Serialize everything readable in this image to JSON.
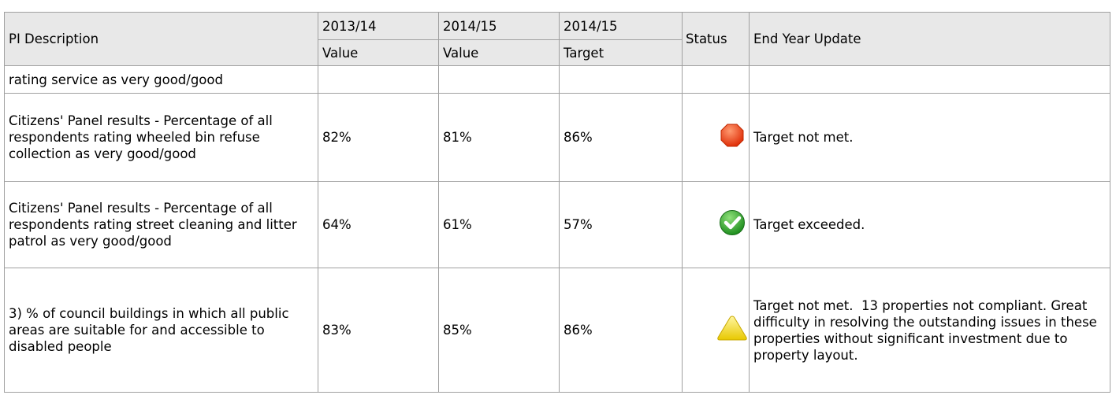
{
  "table": {
    "header_top": [
      "PI Description",
      "2013/14",
      "2014/15",
      "2014/15",
      "Status",
      "End Year Update"
    ],
    "header_bottom": [
      "Value",
      "Value",
      "Target"
    ],
    "rows": [
      {
        "description": "rating service as very good/good"
      },
      {
        "description": "Citizens' Panel results - Percentage of all respondents rating wheeled bin refuse collection as very good/good",
        "value_2013_14": "82%",
        "value_2014_15": "81%",
        "target_2014_15": "86%",
        "update": "Target not met."
      },
      {
        "description": "Citizens' Panel results - Percentage of all respondents rating street cleaning and litter patrol as very good/good",
        "value_2013_14": "64%",
        "value_2014_15": "61%",
        "target_2014_15": "57%",
        "update": "Target exceeded."
      },
      {
        "description": "3) % of council buildings in which all public areas are suitable for and accessible to disabled people",
        "value_2013_14": "83%",
        "value_2014_15": "85%",
        "target_2014_15": "86%",
        "update": "Target not met.  13 properties not compliant. Great difficulty in resolving the outstanding issues in these properties without significant investment due to property layout."
      }
    ]
  }
}
